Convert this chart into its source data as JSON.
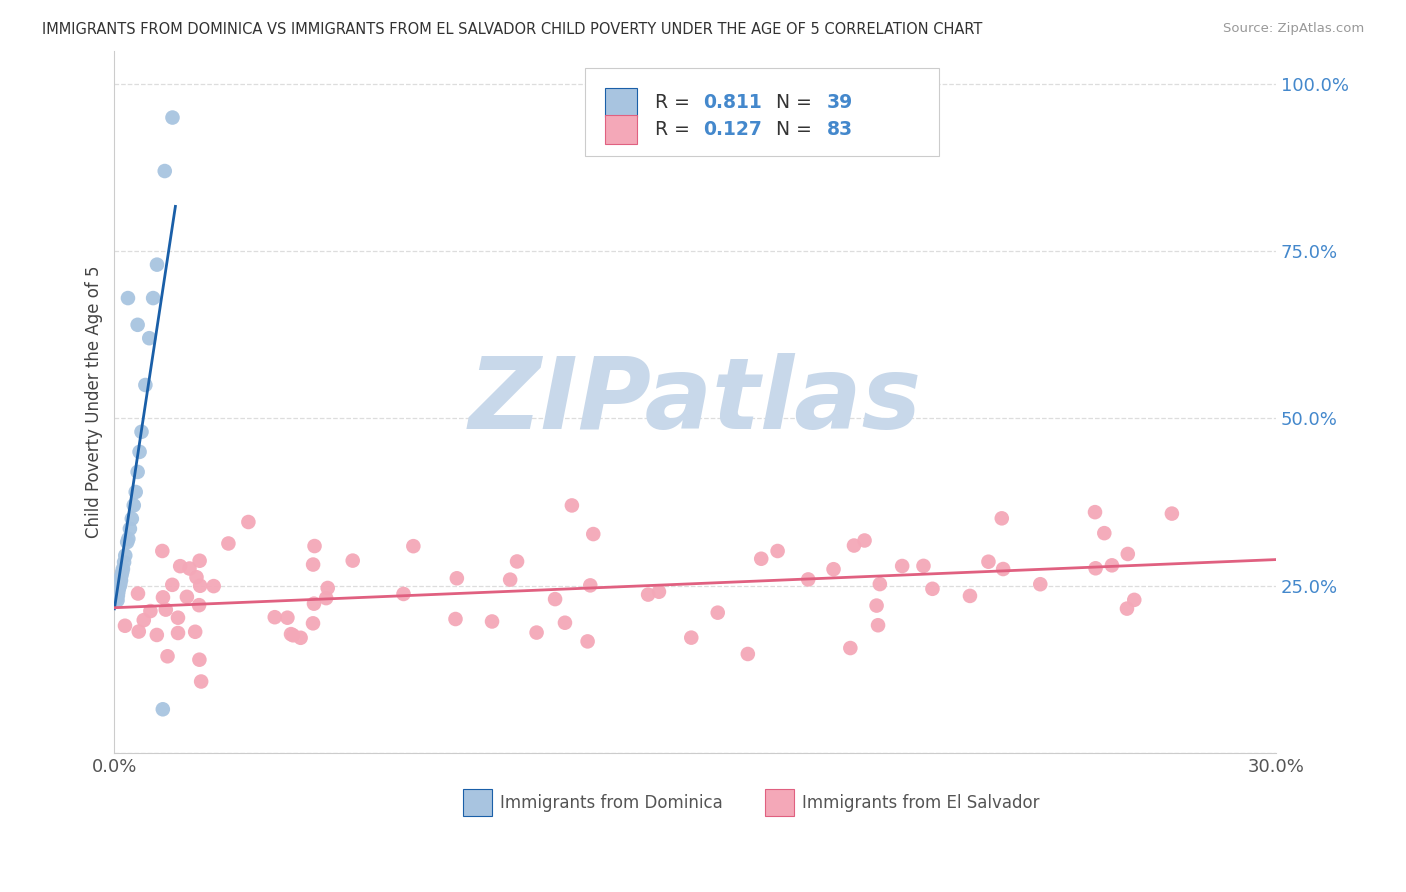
{
  "title": "IMMIGRANTS FROM DOMINICA VS IMMIGRANTS FROM EL SALVADOR CHILD POVERTY UNDER THE AGE OF 5 CORRELATION CHART",
  "source": "Source: ZipAtlas.com",
  "ylabel": "Child Poverty Under the Age of 5",
  "xlim": [
    0.0,
    0.3
  ],
  "ylim": [
    0.0,
    1.05
  ],
  "dominica_R": "0.811",
  "dominica_N": "39",
  "elsalvador_R": "0.127",
  "elsalvador_N": "83",
  "dominica_color": "#a8c4e0",
  "dominica_line_color": "#1a5fa8",
  "elsalvador_color": "#f4a8b8",
  "elsalvador_line_color": "#e06080",
  "watermark": "ZIPatlas",
  "watermark_color": "#c8d8ea",
  "legend_label_dominica": "Immigrants from Dominica",
  "legend_label_elsalvador": "Immigrants from El Salvador",
  "r_n_color": "#4488cc",
  "label_color": "#444444",
  "grid_color": "#dddddd",
  "spine_color": "#cccccc",
  "tick_color": "#4488cc"
}
